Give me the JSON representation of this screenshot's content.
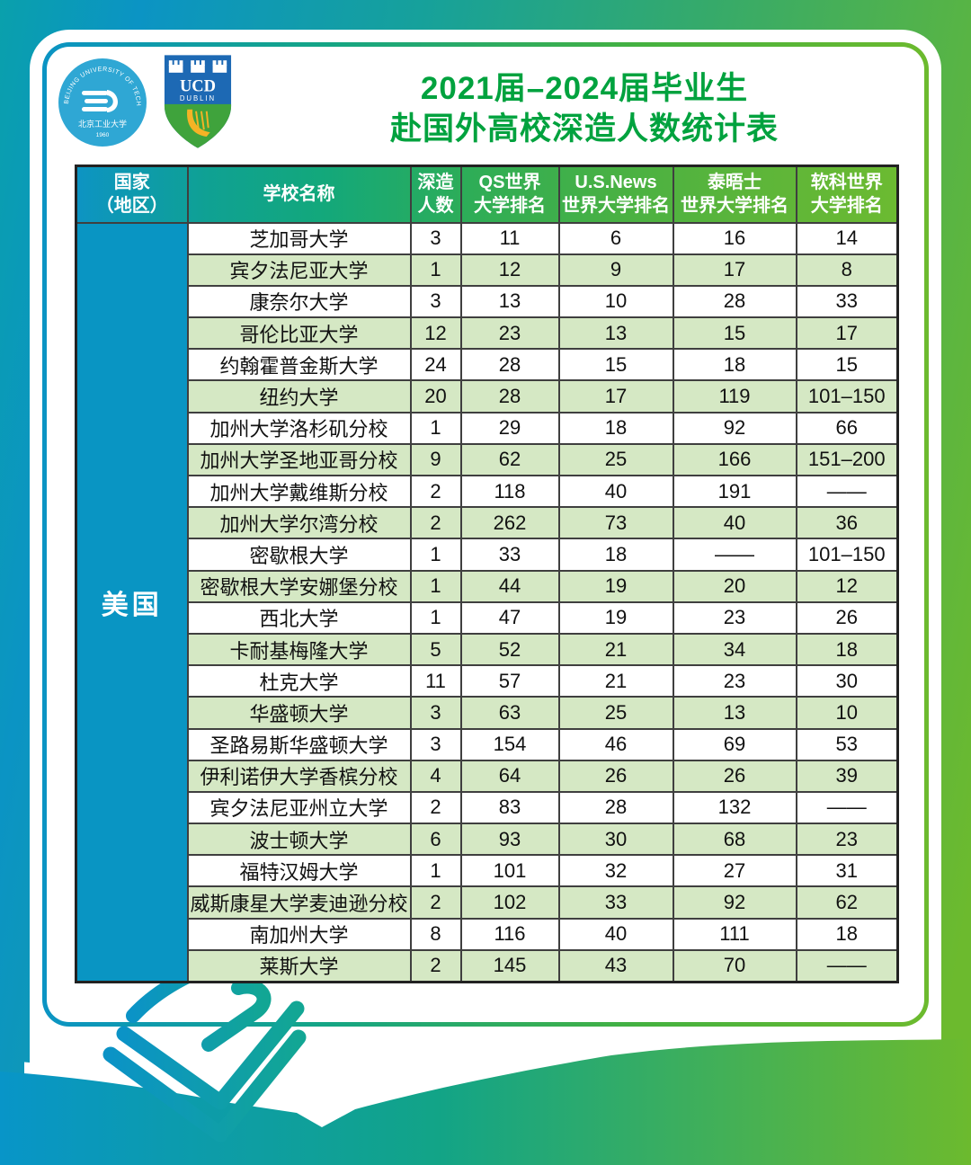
{
  "header": {
    "title_line1": "2021届–2024届毕业生",
    "title_line2": "赴国外高校深造人数统计表",
    "title_color": "#00a23e",
    "bjut_logo": {
      "ring_text": "BEIJING UNIVERSITY OF TECHNOLOGY",
      "cn_name": "北京工业大学",
      "year": "1960"
    },
    "ucd_logo": {
      "acronym": "UCD",
      "city": "DUBLIN"
    }
  },
  "table": {
    "country": "美国",
    "columns": [
      {
        "line1": "国家",
        "line2": "（地区）"
      },
      {
        "line1": "学校名称",
        "line2": ""
      },
      {
        "line1": "深造",
        "line2": "人数"
      },
      {
        "line1": "QS世界",
        "line2": "大学排名"
      },
      {
        "line1": "U.S.News",
        "line2": "世界大学排名"
      },
      {
        "line1": "泰晤士",
        "line2": "世界大学排名"
      },
      {
        "line1": "软科世界",
        "line2": "大学排名"
      }
    ],
    "rows": [
      {
        "school": "芝加哥大学",
        "count": "3",
        "qs": "11",
        "usnews": "6",
        "times": "16",
        "ruanke": "14"
      },
      {
        "school": "宾夕法尼亚大学",
        "count": "1",
        "qs": "12",
        "usnews": "9",
        "times": "17",
        "ruanke": "8"
      },
      {
        "school": "康奈尔大学",
        "count": "3",
        "qs": "13",
        "usnews": "10",
        "times": "28",
        "ruanke": "33"
      },
      {
        "school": "哥伦比亚大学",
        "count": "12",
        "qs": "23",
        "usnews": "13",
        "times": "15",
        "ruanke": "17"
      },
      {
        "school": "约翰霍普金斯大学",
        "count": "24",
        "qs": "28",
        "usnews": "15",
        "times": "18",
        "ruanke": "15"
      },
      {
        "school": "纽约大学",
        "count": "20",
        "qs": "28",
        "usnews": "17",
        "times": "119",
        "ruanke": "101–150"
      },
      {
        "school": "加州大学洛杉矶分校",
        "count": "1",
        "qs": "29",
        "usnews": "18",
        "times": "92",
        "ruanke": "66"
      },
      {
        "school": "加州大学圣地亚哥分校",
        "count": "9",
        "qs": "62",
        "usnews": "25",
        "times": "166",
        "ruanke": "151–200"
      },
      {
        "school": "加州大学戴维斯分校",
        "count": "2",
        "qs": "118",
        "usnews": "40",
        "times": "191",
        "ruanke": "——"
      },
      {
        "school": "加州大学尔湾分校",
        "count": "2",
        "qs": "262",
        "usnews": "73",
        "times": "40",
        "ruanke": "36"
      },
      {
        "school": "密歇根大学",
        "count": "1",
        "qs": "33",
        "usnews": "18",
        "times": "——",
        "ruanke": "101–150"
      },
      {
        "school": "密歇根大学安娜堡分校",
        "count": "1",
        "qs": "44",
        "usnews": "19",
        "times": "20",
        "ruanke": "12"
      },
      {
        "school": "西北大学",
        "count": "1",
        "qs": "47",
        "usnews": "19",
        "times": "23",
        "ruanke": "26"
      },
      {
        "school": "卡耐基梅隆大学",
        "count": "5",
        "qs": "52",
        "usnews": "21",
        "times": "34",
        "ruanke": "18"
      },
      {
        "school": "杜克大学",
        "count": "11",
        "qs": "57",
        "usnews": "21",
        "times": "23",
        "ruanke": "30"
      },
      {
        "school": "华盛顿大学",
        "count": "3",
        "qs": "63",
        "usnews": "25",
        "times": "13",
        "ruanke": "10"
      },
      {
        "school": "圣路易斯华盛顿大学",
        "count": "3",
        "qs": "154",
        "usnews": "46",
        "times": "69",
        "ruanke": "53"
      },
      {
        "school": "伊利诺伊大学香槟分校",
        "count": "4",
        "qs": "64",
        "usnews": "26",
        "times": "26",
        "ruanke": "39"
      },
      {
        "school": "宾夕法尼亚州立大学",
        "count": "2",
        "qs": "83",
        "usnews": "28",
        "times": "132",
        "ruanke": "——"
      },
      {
        "school": "波士顿大学",
        "count": "6",
        "qs": "93",
        "usnews": "30",
        "times": "68",
        "ruanke": "23"
      },
      {
        "school": "福特汉姆大学",
        "count": "1",
        "qs": "101",
        "usnews": "32",
        "times": "27",
        "ruanke": "31"
      },
      {
        "school": "威斯康星大学麦迪逊分校",
        "count": "2",
        "qs": "102",
        "usnews": "33",
        "times": "92",
        "ruanke": "62"
      },
      {
        "school": "南加州大学",
        "count": "8",
        "qs": "116",
        "usnews": "40",
        "times": "111",
        "ruanke": "18"
      },
      {
        "school": "莱斯大学",
        "count": "2",
        "qs": "145",
        "usnews": "43",
        "times": "70",
        "ruanke": "——"
      }
    ],
    "colors": {
      "country_blue": "#0995c3",
      "row_green": "#d5e8c4",
      "header_gradient_start": "#0d94c3",
      "header_gradient_end": "#6cba31"
    }
  }
}
